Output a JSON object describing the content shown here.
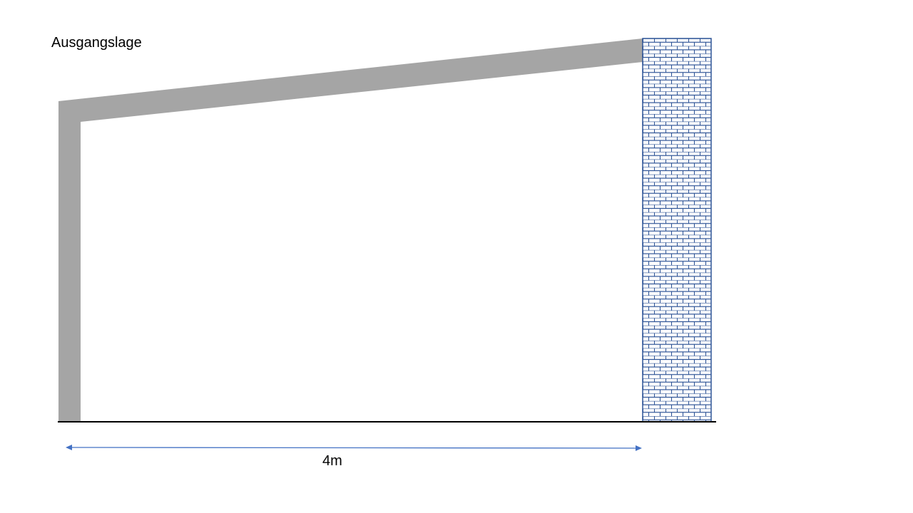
{
  "title": "Ausgangslage",
  "dimension_label": "4m",
  "colors": {
    "beam": "#a5a5a5",
    "wall_stroke": "#2f5597",
    "arrow": "#4472c4",
    "ground": "#000000"
  }
}
